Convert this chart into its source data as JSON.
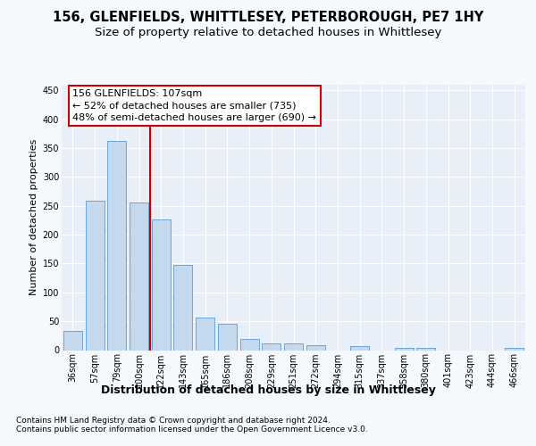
{
  "title1": "156, GLENFIELDS, WHITTLESEY, PETERBOROUGH, PE7 1HY",
  "title2": "Size of property relative to detached houses in Whittlesey",
  "xlabel": "Distribution of detached houses by size in Whittlesey",
  "ylabel": "Number of detached properties",
  "categories": [
    "36sqm",
    "57sqm",
    "79sqm",
    "100sqm",
    "122sqm",
    "143sqm",
    "165sqm",
    "186sqm",
    "208sqm",
    "229sqm",
    "251sqm",
    "272sqm",
    "294sqm",
    "315sqm",
    "337sqm",
    "358sqm",
    "380sqm",
    "401sqm",
    "423sqm",
    "444sqm",
    "466sqm"
  ],
  "values": [
    33,
    259,
    362,
    256,
    226,
    148,
    57,
    45,
    20,
    11,
    11,
    8,
    0,
    7,
    0,
    4,
    4,
    0,
    0,
    0,
    4
  ],
  "bar_color": "#c5d9ee",
  "bar_edge_color": "#5b9bd5",
  "vline_x": 3.5,
  "vline_color": "#cc0000",
  "annotation_title": "156 GLENFIELDS: 107sqm",
  "annotation_line2": "← 52% of detached houses are smaller (735)",
  "annotation_line3": "48% of semi-detached houses are larger (690) →",
  "annotation_box_color": "#cc0000",
  "ylim": [
    0,
    460
  ],
  "yticks": [
    0,
    50,
    100,
    150,
    200,
    250,
    300,
    350,
    400,
    450
  ],
  "footer1": "Contains HM Land Registry data © Crown copyright and database right 2024.",
  "footer2": "Contains public sector information licensed under the Open Government Licence v3.0.",
  "bg_color": "#f5f8fd",
  "plot_bg_color": "#e8eff8",
  "title1_fontsize": 10.5,
  "title2_fontsize": 9.5,
  "xlabel_fontsize": 9,
  "ylabel_fontsize": 8,
  "ann_fontsize": 8,
  "tick_fontsize": 7,
  "footer_fontsize": 6.5
}
